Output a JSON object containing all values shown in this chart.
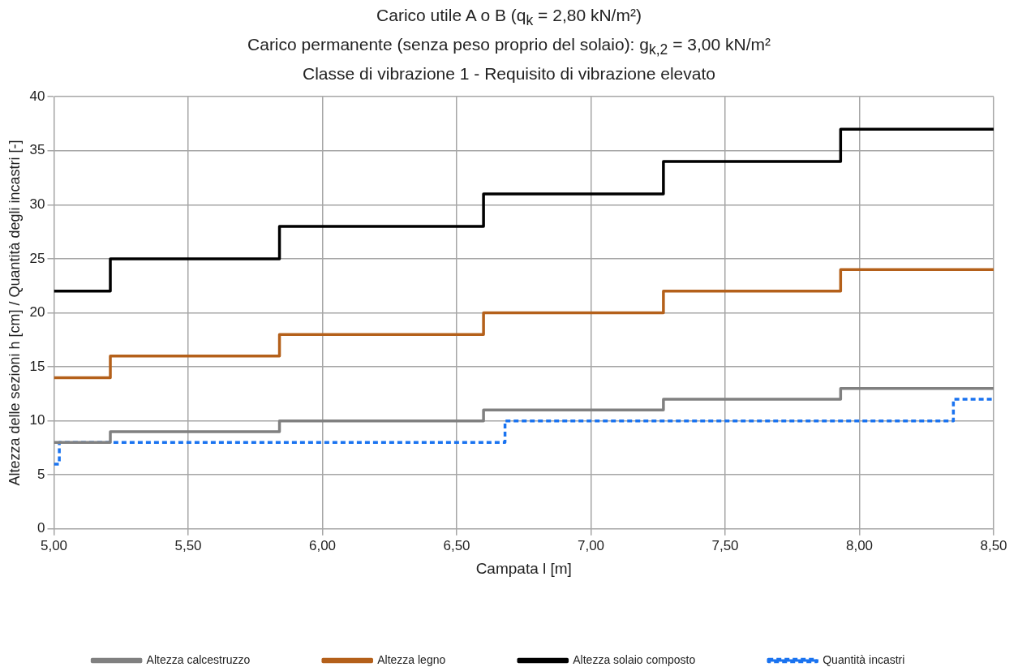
{
  "chart_data": {
    "type": "step",
    "title": "Carico utile A o B (q$_{k}$ = 2,80 kN/m²)",
    "subtitle": "Carico permanente (senza peso proprio del solaio): g$_{k,2}$ = 3,00 kN/m²\nClasse di vibrazione 1 - Requisito di vibrazione elevato",
    "xlabel": "Campata l [m]",
    "ylabel": "Altezza delle sezioni h [cm] / Quantità degli incastri [-]",
    "series": [
      {
        "name": "Altezza calcestruzzo",
        "color": "#808080",
        "x": [
          5.0,
          5.21,
          5.84,
          6.6,
          7.27,
          7.93,
          8.5
        ],
        "values": [
          8,
          9,
          10,
          11,
          12,
          13,
          13
        ]
      },
      {
        "name": "Altezza legno",
        "color": "#b4601a",
        "x": [
          5.0,
          5.21,
          5.84,
          6.6,
          7.27,
          7.93,
          8.5
        ],
        "values": [
          14,
          16,
          18,
          20,
          22,
          24,
          24
        ]
      },
      {
        "name": "Altezza solaio composto",
        "color": "#000000",
        "x": [
          5.0,
          5.21,
          5.84,
          6.6,
          7.27,
          7.93,
          8.5
        ],
        "values": [
          22,
          25,
          28,
          31,
          34,
          37,
          37
        ]
      },
      {
        "name": "Quantità incastri",
        "color": "#1a73f0",
        "line_style": "dashed",
        "x": [
          5.0,
          5.02,
          6.68,
          8.35,
          8.5
        ],
        "values": [
          6,
          8,
          10,
          12,
          12
        ]
      }
    ],
    "xlim": [
      5,
      8.5
    ],
    "xticks": [
      {
        "value": 5,
        "label": "5,00"
      },
      {
        "value": 5.5,
        "label": "5,50"
      },
      {
        "value": 6,
        "label": "6,00"
      },
      {
        "value": 6.5,
        "label": "6,50"
      },
      {
        "value": 7,
        "label": "7,00"
      },
      {
        "value": 7.5,
        "label": "7,50"
      },
      {
        "value": 8,
        "label": "8,00"
      },
      {
        "value": 8.5,
        "label": "8,50"
      }
    ],
    "ylim": [
      0,
      40
    ],
    "yticks": [
      0,
      5,
      10,
      15,
      20,
      25,
      30,
      35,
      40
    ],
    "grid": true,
    "legend": "bottom",
    "marker": "none",
    "line_style": "solid"
  }
}
